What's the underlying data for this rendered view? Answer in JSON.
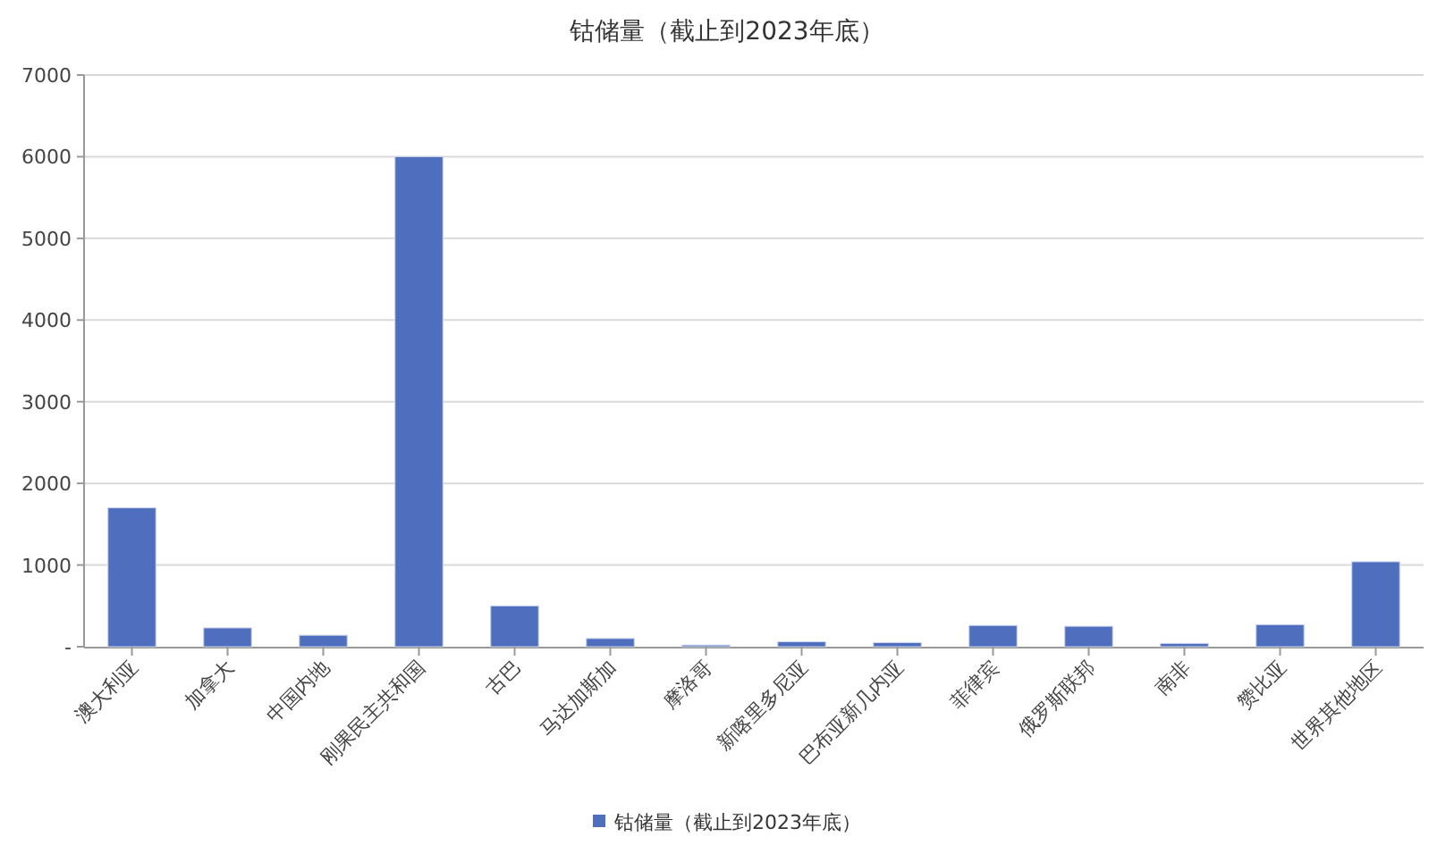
{
  "chart_data": {
    "type": "bar",
    "title": "钴储量（截止到2023年底）",
    "categories": [
      "澳大利亚",
      "加拿大",
      "中国内地",
      "刚果民主共和国",
      "古巴",
      "马达加斯加",
      "摩洛哥",
      "新喀里多尼亚",
      "巴布亚新几内亚",
      "菲律宾",
      "俄罗斯联邦",
      "南非",
      "赞比亚",
      "世界其他地区"
    ],
    "series": [
      {
        "name": "钴储量（截止到2023年底）",
        "color": "#4f6fbe",
        "values": [
          1700,
          230,
          140,
          6000,
          500,
          100,
          20,
          60,
          50,
          260,
          250,
          40,
          270,
          1040
        ]
      }
    ],
    "ylim": [
      0,
      7000
    ],
    "yticks": [
      {
        "value": 0,
        "label": "-"
      },
      1000,
      2000,
      3000,
      4000,
      5000,
      6000,
      7000
    ],
    "grid": "y",
    "legend": "bottom"
  }
}
